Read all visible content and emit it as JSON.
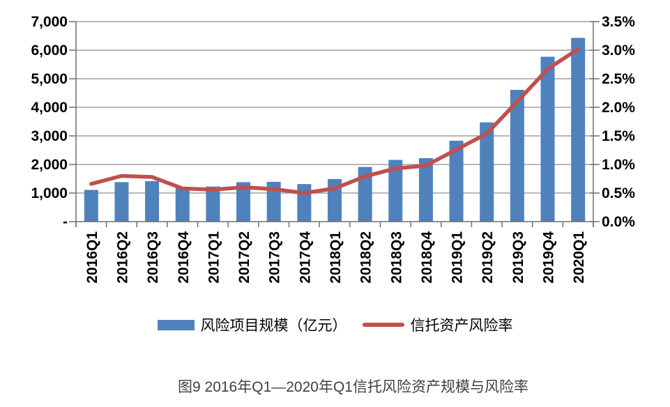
{
  "figure": {
    "caption": "图9  2016年Q1—2020年Q1信托风险资产规模与风险率"
  },
  "legend": {
    "items": [
      {
        "label": "风险项目规模（亿元）",
        "swatch": "bar-swatch",
        "color": "#4F81BD"
      },
      {
        "label": "信托资产风险率",
        "swatch": "line-swatch",
        "color": "#C0504D"
      }
    ]
  },
  "chart_data": {
    "type": "combo_bar_line",
    "categories": [
      "2016Q1",
      "2016Q2",
      "2016Q3",
      "2016Q4",
      "2017Q1",
      "2017Q2",
      "2017Q3",
      "2017Q4",
      "2018Q1",
      "2018Q2",
      "2018Q3",
      "2018Q4",
      "2019Q1",
      "2019Q2",
      "2019Q3",
      "2019Q4",
      "2020Q1"
    ],
    "series": [
      {
        "name": "风险项目规模（亿元）",
        "type": "bar",
        "axis": "left",
        "color": "#4F81BD",
        "values": [
          1110,
          1381,
          1419,
          1175,
          1228,
          1381,
          1392,
          1314,
          1491,
          1913,
          2160,
          2222,
          2831,
          3474,
          4611,
          5770,
          6431
        ]
      },
      {
        "name": "信托资产风险率",
        "type": "line",
        "axis": "right",
        "unit": "%",
        "color": "#C0504D",
        "values": [
          0.66,
          0.8,
          0.78,
          0.58,
          0.56,
          0.6,
          0.57,
          0.5,
          0.58,
          0.79,
          0.93,
          0.98,
          1.26,
          1.54,
          2.1,
          2.67,
          3.02
        ]
      }
    ],
    "left_axis": {
      "min": 0,
      "max": 7000,
      "step": 1000,
      "tick_labels_top_to_bottom": [
        "7,000",
        "6,000",
        "5,000",
        "4,000",
        "3,000",
        "2,000",
        "1,000",
        "-"
      ]
    },
    "right_axis": {
      "min": 0,
      "max": 3.5,
      "step": 0.5,
      "tick_labels_top_to_bottom": [
        "3.5%",
        "3.0%",
        "2.5%",
        "2.0%",
        "1.5%",
        "1.0%",
        "0.5%",
        "0.0%"
      ]
    },
    "grid": true,
    "legend_position": "bottom"
  },
  "colors": {
    "bar": "#4F81BD",
    "line": "#C0504D",
    "gridline": "#8C8C8C",
    "axis": "#6E6E6E",
    "tick_text": "#000000",
    "caption_text": "#3F3F3F",
    "background": "#FFFFFF"
  }
}
